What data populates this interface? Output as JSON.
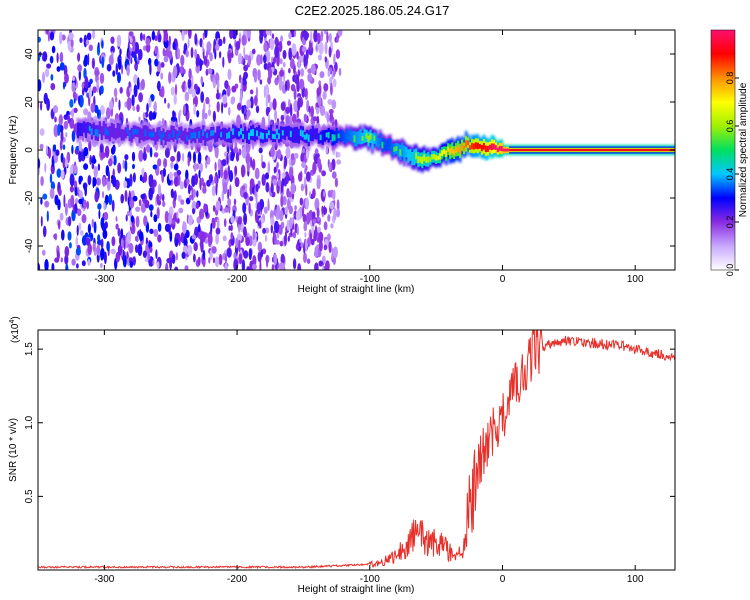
{
  "title": "C2E2.2025.186.05.24.G17",
  "colors": {
    "snr_line": "#e8302a",
    "signal_core": "#e0201a",
    "noise": "#7a1fe0"
  },
  "chart_data": [
    {
      "type": "heatmap",
      "xlabel": "Height of straight line (km)",
      "ylabel": "Frequency (Hz)",
      "xlim": [
        -350,
        130
      ],
      "ylim": [
        -50,
        50
      ],
      "x_ticks": [
        -300,
        -200,
        -100,
        0,
        100
      ],
      "y_ticks": [
        -40,
        -20,
        0,
        20,
        40
      ],
      "x_tick_labels": [
        "-300",
        "-200",
        "-100",
        "0",
        "100"
      ],
      "y_tick_labels": [
        "-40",
        "-20",
        "0",
        "20",
        "40"
      ],
      "colorbar": {
        "label": "Normalized spectral amplitude",
        "range": [
          0,
          1
        ],
        "ticks": [
          0.0,
          0.2,
          0.4,
          0.6,
          0.8
        ],
        "tick_labels": [
          "0.0",
          "0.2",
          "0.4",
          "0.6",
          "0.8"
        ],
        "colormap": [
          "#ffffff",
          "#c8a8ff",
          "#8a2be2",
          "#0000ff",
          "#00c8ff",
          "#00e060",
          "#a0f000",
          "#ffff00",
          "#ff9000",
          "#ff0000",
          "#ff1070"
        ]
      },
      "noise_region_x": [
        -350,
        -125
      ],
      "signal_ridge": {
        "x": [
          -320,
          -300,
          -280,
          -260,
          -240,
          -220,
          -200,
          -180,
          -160,
          -140,
          -120,
          -110,
          -100,
          -95,
          -90,
          -85,
          -80,
          -75,
          -70,
          -65,
          -60,
          -55,
          -50,
          -45,
          -40,
          -35,
          -30,
          -25,
          -20,
          -15,
          -10,
          -5,
          0,
          20,
          40,
          60,
          80,
          100,
          130
        ],
        "freq": [
          9,
          8,
          7,
          6,
          6,
          6,
          6.5,
          7,
          6.5,
          6,
          5.5,
          5.5,
          5,
          4,
          3,
          1.5,
          0,
          -1,
          -2,
          -3,
          -3.5,
          -4,
          -3,
          -1,
          -0.5,
          0.5,
          1,
          2,
          2,
          1.5,
          1,
          0.5,
          0,
          0,
          0,
          0,
          0,
          0,
          0
        ],
        "amplitude": [
          0.35,
          0.3,
          0.3,
          0.3,
          0.3,
          0.32,
          0.35,
          0.35,
          0.35,
          0.35,
          0.45,
          0.5,
          0.55,
          0.5,
          0.45,
          0.45,
          0.5,
          0.5,
          0.55,
          0.55,
          0.6,
          0.55,
          0.6,
          0.65,
          0.7,
          0.72,
          0.75,
          0.8,
          0.85,
          0.85,
          0.9,
          0.95,
          1.0,
          1.0,
          1.0,
          1.0,
          1.0,
          1.0,
          1.0
        ]
      }
    },
    {
      "type": "line",
      "xlabel": "Height of straight line (km)",
      "ylabel": "SNR (10 * v/v)",
      "y_multiplier_label": "(x10",
      "y_multiplier_exp": "4",
      "xlim": [
        -350,
        130
      ],
      "ylim": [
        0,
        1.63
      ],
      "x_ticks": [
        -300,
        -200,
        -100,
        0,
        100
      ],
      "y_ticks": [
        0.5,
        1.0,
        1.5
      ],
      "x_tick_labels": [
        "-300",
        "-200",
        "-100",
        "0",
        "100"
      ],
      "y_tick_labels": [
        "0.5",
        "1.0",
        "1.5"
      ],
      "series": [
        {
          "x": [
            -350,
            -300,
            -250,
            -200,
            -150,
            -120,
            -100,
            -90,
            -80,
            -75,
            -70,
            -65,
            -60,
            -55,
            -50,
            -45,
            -40,
            -35,
            -30,
            -25,
            -20,
            -15,
            -10,
            -5,
            0,
            5,
            10,
            15,
            20,
            25,
            30,
            40,
            50,
            60,
            70,
            80,
            90,
            100,
            110,
            120,
            130
          ],
          "values": [
            0.02,
            0.02,
            0.02,
            0.02,
            0.02,
            0.03,
            0.04,
            0.06,
            0.1,
            0.14,
            0.2,
            0.24,
            0.22,
            0.18,
            0.2,
            0.17,
            0.12,
            0.1,
            0.15,
            0.45,
            0.65,
            0.8,
            0.9,
            0.95,
            1.05,
            1.15,
            1.25,
            1.35,
            1.42,
            1.48,
            1.52,
            1.55,
            1.56,
            1.55,
            1.54,
            1.53,
            1.52,
            1.5,
            1.48,
            1.46,
            1.44
          ]
        }
      ]
    }
  ]
}
